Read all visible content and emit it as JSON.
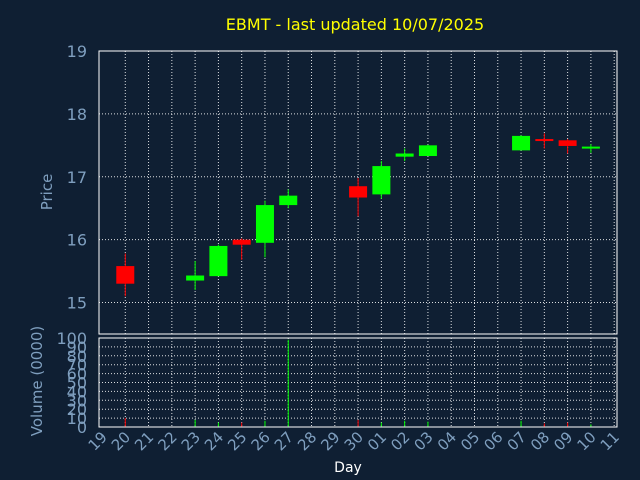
{
  "chart_data": {
    "type": "candlestick",
    "title": "EBMT - last updated 10/07/2025",
    "xlabel": "Day",
    "price_panel": {
      "ylabel": "Price",
      "ylim": [
        14.5,
        19
      ],
      "yticks": [
        "15",
        "16",
        "17",
        "18",
        "19"
      ],
      "grid": true
    },
    "volume_panel": {
      "ylabel": "Volume (0000)",
      "ylim": [
        0,
        100
      ],
      "yticks": [
        "0",
        "10",
        "20",
        "30",
        "40",
        "50",
        "60",
        "70",
        "80",
        "90",
        "100"
      ],
      "grid": true
    },
    "x_ticks": [
      "19",
      "20",
      "21",
      "22",
      "23",
      "24",
      "25",
      "26",
      "27",
      "28",
      "29",
      "30",
      "01",
      "02",
      "03",
      "04",
      "05",
      "06",
      "07",
      "08",
      "09",
      "10",
      "11"
    ],
    "candles": [
      {
        "day": "20",
        "open": 15.58,
        "high": 15.78,
        "low": 15.1,
        "close": 15.3,
        "volume": 10
      },
      {
        "day": "23",
        "open": 15.35,
        "high": 15.66,
        "low": 15.2,
        "close": 15.43,
        "volume": 8
      },
      {
        "day": "24",
        "open": 15.42,
        "high": 15.92,
        "low": 15.42,
        "close": 15.9,
        "volume": 5
      },
      {
        "day": "25",
        "open": 16.0,
        "high": 16.02,
        "low": 15.68,
        "close": 15.92,
        "volume": 5
      },
      {
        "day": "26",
        "open": 15.95,
        "high": 16.62,
        "low": 15.72,
        "close": 16.55,
        "volume": 7
      },
      {
        "day": "27",
        "open": 16.55,
        "high": 16.8,
        "low": 16.5,
        "close": 16.7,
        "volume": 98
      },
      {
        "day": "30",
        "open": 16.85,
        "high": 16.98,
        "low": 16.37,
        "close": 16.67,
        "volume": 8
      },
      {
        "day": "01",
        "open": 16.72,
        "high": 17.25,
        "low": 16.65,
        "close": 17.17,
        "volume": 5
      },
      {
        "day": "02",
        "open": 17.32,
        "high": 17.45,
        "low": 17.25,
        "close": 17.37,
        "volume": 7
      },
      {
        "day": "03",
        "open": 17.33,
        "high": 17.51,
        "low": 17.33,
        "close": 17.5,
        "volume": 6
      },
      {
        "day": "07",
        "open": 17.42,
        "high": 17.66,
        "low": 17.42,
        "close": 17.65,
        "volume": 7
      },
      {
        "day": "08",
        "open": 17.6,
        "high": 17.69,
        "low": 17.45,
        "close": 17.58,
        "volume": 4
      },
      {
        "day": "09",
        "open": 17.58,
        "high": 17.6,
        "low": 17.37,
        "close": 17.49,
        "volume": 5
      },
      {
        "day": "10",
        "open": 17.46,
        "high": 17.52,
        "low": 17.38,
        "close": 17.48,
        "volume": 3
      }
    ],
    "colors": {
      "background": "#0f1f33",
      "up": "#00ff00",
      "down": "#ff0000",
      "grid": "#ffffff",
      "axis_text": "#7f9fbf",
      "title": "#ffff00",
      "xlabel": "#ffffff"
    }
  }
}
